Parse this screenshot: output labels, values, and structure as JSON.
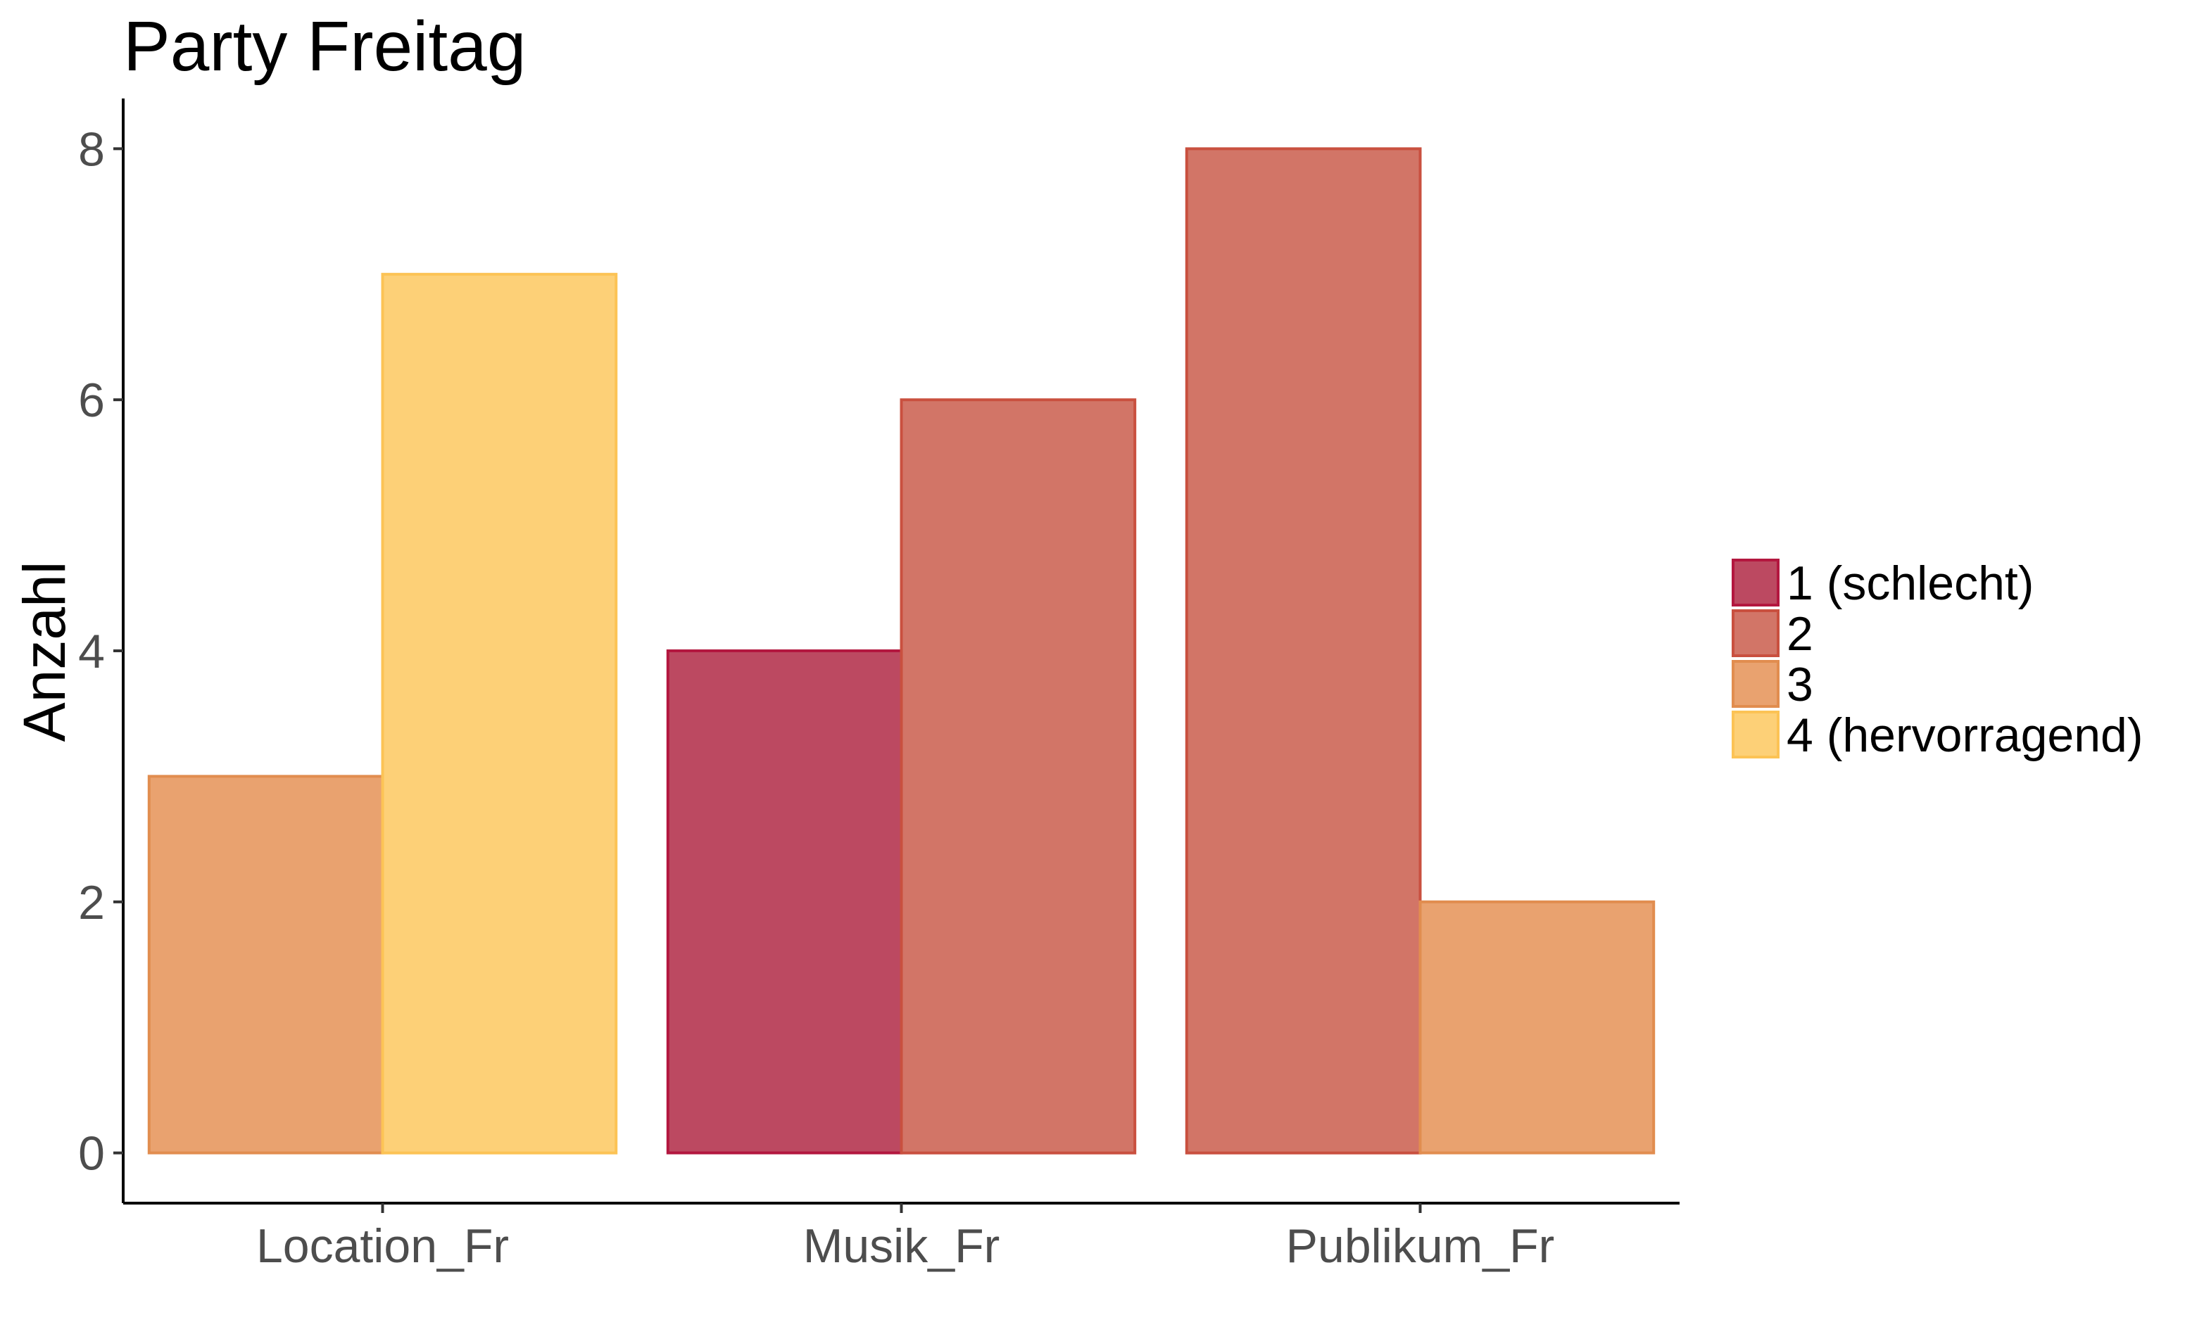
{
  "chart_data": {
    "type": "bar",
    "title": "Party Freitag",
    "xlabel": "",
    "ylabel": "Anzahl",
    "categories": [
      "Location_Fr",
      "Musik_Fr",
      "Publikum_Fr"
    ],
    "yticks": [
      0,
      2,
      4,
      6,
      8
    ],
    "ylim": [
      -0.4,
      8.4
    ],
    "grid": false,
    "legend_position": "right",
    "series": [
      {
        "name": "1 (schlecht)",
        "color": "#bc4961",
        "stroke": "#b3173f"
      },
      {
        "name": "2",
        "color": "#d27567",
        "stroke": "#c9503f"
      },
      {
        "name": "3",
        "color": "#e9a26f",
        "stroke": "#e18d4f"
      },
      {
        "name": "4 (hervorragend)",
        "color": "#fdd077",
        "stroke": "#fcc355"
      }
    ],
    "groups": [
      {
        "category": "Location_Fr",
        "bars": [
          {
            "series": "3",
            "value": 3
          },
          {
            "series": "4 (hervorragend)",
            "value": 7
          }
        ]
      },
      {
        "category": "Musik_Fr",
        "bars": [
          {
            "series": "1 (schlecht)",
            "value": 4
          },
          {
            "series": "2",
            "value": 6
          }
        ]
      },
      {
        "category": "Publikum_Fr",
        "bars": [
          {
            "series": "2",
            "value": 8
          },
          {
            "series": "3",
            "value": 2
          }
        ]
      }
    ]
  }
}
